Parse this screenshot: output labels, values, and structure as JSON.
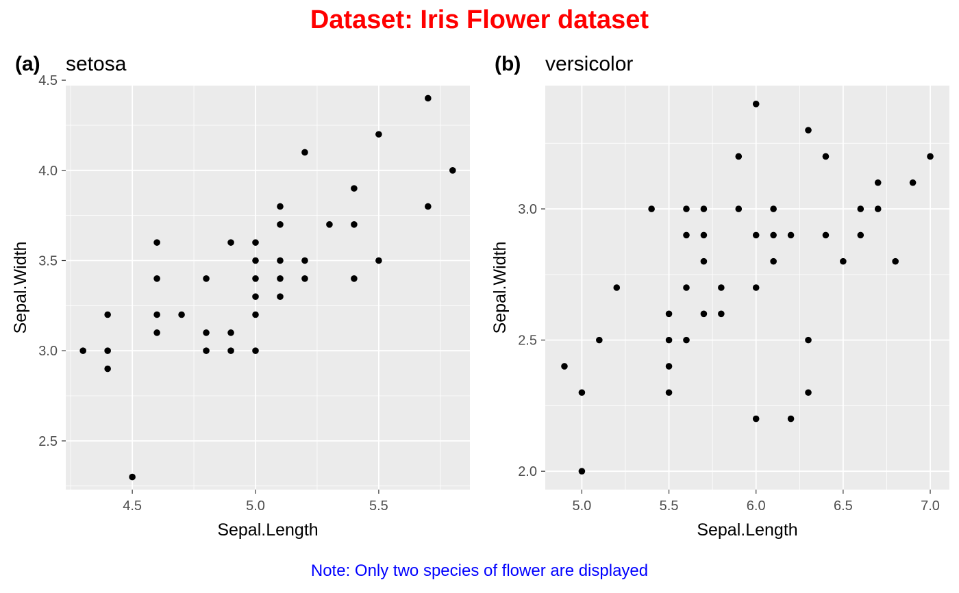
{
  "figure": {
    "title": "Dataset: Iris Flower dataset",
    "note": "Note: Only two species of flower are displayed",
    "title_color": "#ff0000",
    "note_color": "#0000ff",
    "panel_background": "#ebebeb",
    "gridline_color": "#ffffff",
    "point_color": "#000000"
  },
  "chart_data": [
    {
      "type": "scatter",
      "tag": "(a)",
      "title": "setosa",
      "xlabel": "Sepal.Length",
      "ylabel": "Sepal.Width",
      "xlim": [
        4.23,
        5.87
      ],
      "ylim": [
        2.23,
        4.47
      ],
      "xticks": [
        4.5,
        5.0,
        5.5
      ],
      "xtick_labels": [
        "4.5",
        "5.0",
        "5.5"
      ],
      "yticks": [
        2.5,
        3.0,
        3.5,
        4.0,
        4.5
      ],
      "ytick_labels": [
        "2.5",
        "3.0",
        "3.5",
        "4.0",
        "4.5"
      ],
      "grid": true,
      "points": [
        [
          4.3,
          3.0
        ],
        [
          4.4,
          3.2
        ],
        [
          4.4,
          3.0
        ],
        [
          4.4,
          2.9
        ],
        [
          4.5,
          2.3
        ],
        [
          4.6,
          3.6
        ],
        [
          4.6,
          3.4
        ],
        [
          4.6,
          3.2
        ],
        [
          4.6,
          3.1
        ],
        [
          4.7,
          3.2
        ],
        [
          4.8,
          3.4
        ],
        [
          4.8,
          3.1
        ],
        [
          4.8,
          3.0
        ],
        [
          4.9,
          3.6
        ],
        [
          4.9,
          3.1
        ],
        [
          4.9,
          3.0
        ],
        [
          5.0,
          3.6
        ],
        [
          5.0,
          3.5
        ],
        [
          5.0,
          3.4
        ],
        [
          5.0,
          3.3
        ],
        [
          5.0,
          3.2
        ],
        [
          5.0,
          3.0
        ],
        [
          5.1,
          3.8
        ],
        [
          5.1,
          3.7
        ],
        [
          5.1,
          3.5
        ],
        [
          5.1,
          3.4
        ],
        [
          5.1,
          3.3
        ],
        [
          5.2,
          4.1
        ],
        [
          5.2,
          3.5
        ],
        [
          5.2,
          3.4
        ],
        [
          5.3,
          3.7
        ],
        [
          5.4,
          3.9
        ],
        [
          5.4,
          3.7
        ],
        [
          5.4,
          3.4
        ],
        [
          5.5,
          4.2
        ],
        [
          5.5,
          3.5
        ],
        [
          5.7,
          4.4
        ],
        [
          5.7,
          3.8
        ],
        [
          5.8,
          4.0
        ]
      ]
    },
    {
      "type": "scatter",
      "tag": "(b)",
      "title": "versicolor",
      "xlabel": "Sepal.Length",
      "ylabel": "Sepal.Width",
      "xlim": [
        4.79,
        7.11
      ],
      "ylim": [
        1.93,
        3.47
      ],
      "xticks": [
        5.0,
        5.5,
        6.0,
        6.5,
        7.0
      ],
      "xtick_labels": [
        "5.0",
        "5.5",
        "6.0",
        "6.5",
        "7.0"
      ],
      "yticks": [
        2.0,
        2.5,
        3.0
      ],
      "ytick_labels": [
        "2.0",
        "2.5",
        "3.0"
      ],
      "grid": true,
      "points": [
        [
          4.9,
          2.4
        ],
        [
          5.0,
          2.3
        ],
        [
          5.0,
          2.0
        ],
        [
          5.1,
          2.5
        ],
        [
          5.2,
          2.7
        ],
        [
          5.4,
          3.0
        ],
        [
          5.5,
          2.6
        ],
        [
          5.5,
          2.5
        ],
        [
          5.5,
          2.4
        ],
        [
          5.5,
          2.3
        ],
        [
          5.6,
          3.0
        ],
        [
          5.6,
          2.9
        ],
        [
          5.6,
          2.7
        ],
        [
          5.6,
          2.5
        ],
        [
          5.7,
          3.0
        ],
        [
          5.7,
          2.9
        ],
        [
          5.7,
          2.8
        ],
        [
          5.7,
          2.6
        ],
        [
          5.8,
          2.7
        ],
        [
          5.8,
          2.6
        ],
        [
          5.9,
          3.2
        ],
        [
          5.9,
          3.0
        ],
        [
          6.0,
          3.4
        ],
        [
          6.0,
          2.9
        ],
        [
          6.0,
          2.7
        ],
        [
          6.0,
          2.2
        ],
        [
          6.1,
          3.0
        ],
        [
          6.1,
          2.9
        ],
        [
          6.1,
          2.8
        ],
        [
          6.2,
          2.9
        ],
        [
          6.2,
          2.2
        ],
        [
          6.3,
          3.3
        ],
        [
          6.3,
          2.5
        ],
        [
          6.3,
          2.3
        ],
        [
          6.4,
          3.2
        ],
        [
          6.4,
          2.9
        ],
        [
          6.5,
          2.8
        ],
        [
          6.6,
          3.0
        ],
        [
          6.6,
          2.9
        ],
        [
          6.7,
          3.1
        ],
        [
          6.7,
          3.0
        ],
        [
          6.8,
          2.8
        ],
        [
          6.9,
          3.1
        ],
        [
          7.0,
          3.2
        ]
      ]
    }
  ]
}
